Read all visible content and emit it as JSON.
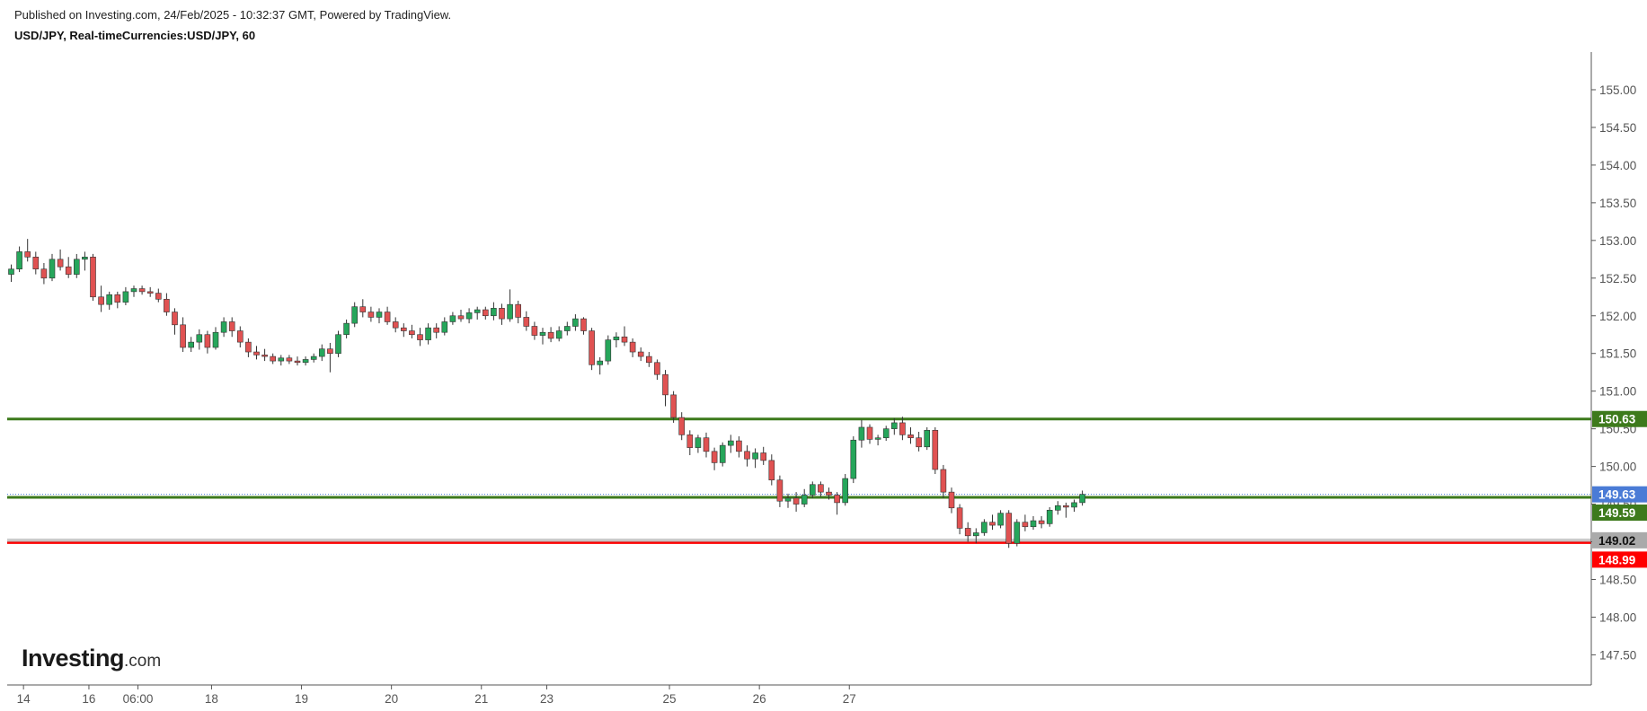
{
  "header": {
    "published": "Published on Investing.com, 24/Feb/2025 - 10:32:37 GMT, Powered by TradingView.",
    "symbol": "USD/JPY, Real-timeCurrencies:USD/JPY, 60"
  },
  "logo": {
    "main": "Investing",
    "suffix": ".com"
  },
  "colors": {
    "up": "#26a65b",
    "down": "#e05252",
    "resistance": "#3d7a1c",
    "support_red": "#ff0000",
    "current": "#4a7bd6",
    "gray": "#aaaaaa"
  },
  "chart_data": {
    "type": "candlestick",
    "title": "USD/JPY, Real-timeCurrencies:USD/JPY, 60",
    "ylim": [
      147.1,
      155.5
    ],
    "y_ticks": [
      "155.00",
      "154.50",
      "154.00",
      "153.50",
      "153.00",
      "152.50",
      "152.00",
      "151.50",
      "151.00",
      "150.50",
      "150.00",
      "149.50",
      "149.00",
      "148.50",
      "148.00",
      "147.50"
    ],
    "x_ticks": [
      {
        "label": "14",
        "t": 1.5
      },
      {
        "label": "16",
        "t": 9.5
      },
      {
        "label": "06:00",
        "t": 15.5
      },
      {
        "label": "18",
        "t": 24.5
      },
      {
        "label": "19",
        "t": 35.5
      },
      {
        "label": "20",
        "t": 46.5
      },
      {
        "label": "21",
        "t": 57.5
      },
      {
        "label": "23",
        "t": 65.5
      },
      {
        "label": "25",
        "t": 80.5
      },
      {
        "label": "26",
        "t": 91.5
      },
      {
        "label": "27",
        "t": 102.5
      }
    ],
    "horizontal_lines": [
      {
        "value": 150.63,
        "label": "150.63",
        "color": "#3d7a1c"
      },
      {
        "value": 149.59,
        "label": "149.59",
        "color": "#3d7a1c"
      },
      {
        "value": 148.99,
        "label": "148.99",
        "color": "#ff0000"
      },
      {
        "value": 149.02,
        "label": "149.02",
        "color": "#aaaaaa"
      }
    ],
    "current_price": {
      "value": 149.63,
      "label": "149.63",
      "color": "#4a7bd6"
    },
    "candles": [
      [
        152.55,
        152.68,
        152.45,
        152.62
      ],
      [
        152.62,
        152.92,
        152.58,
        152.85
      ],
      [
        152.85,
        153.02,
        152.72,
        152.78
      ],
      [
        152.78,
        152.85,
        152.55,
        152.62
      ],
      [
        152.62,
        152.7,
        152.42,
        152.5
      ],
      [
        152.5,
        152.82,
        152.46,
        152.75
      ],
      [
        152.75,
        152.88,
        152.6,
        152.65
      ],
      [
        152.65,
        152.78,
        152.5,
        152.55
      ],
      [
        152.55,
        152.82,
        152.5,
        152.75
      ],
      [
        152.75,
        152.85,
        152.6,
        152.78
      ],
      [
        152.78,
        152.82,
        152.2,
        152.25
      ],
      [
        152.25,
        152.4,
        152.05,
        152.15
      ],
      [
        152.15,
        152.32,
        152.08,
        152.28
      ],
      [
        152.28,
        152.32,
        152.1,
        152.18
      ],
      [
        152.18,
        152.38,
        152.14,
        152.32
      ],
      [
        152.32,
        152.4,
        152.25,
        152.36
      ],
      [
        152.36,
        152.4,
        152.28,
        152.32
      ],
      [
        152.32,
        152.38,
        152.25,
        152.3
      ],
      [
        152.3,
        152.36,
        152.18,
        152.22
      ],
      [
        152.22,
        152.3,
        152.0,
        152.05
      ],
      [
        152.05,
        152.1,
        151.75,
        151.88
      ],
      [
        151.88,
        151.98,
        151.52,
        151.58
      ],
      [
        151.58,
        151.72,
        151.52,
        151.65
      ],
      [
        151.65,
        151.82,
        151.55,
        151.75
      ],
      [
        151.75,
        151.8,
        151.5,
        151.58
      ],
      [
        151.58,
        151.85,
        151.55,
        151.78
      ],
      [
        151.78,
        151.98,
        151.72,
        151.92
      ],
      [
        151.92,
        151.98,
        151.72,
        151.8
      ],
      [
        151.8,
        151.86,
        151.58,
        151.65
      ],
      [
        151.65,
        151.7,
        151.45,
        151.52
      ],
      [
        151.52,
        151.6,
        151.42,
        151.48
      ],
      [
        151.48,
        151.56,
        151.4,
        151.46
      ],
      [
        151.46,
        151.5,
        151.36,
        151.4
      ],
      [
        151.4,
        151.48,
        151.34,
        151.44
      ],
      [
        151.44,
        151.48,
        151.36,
        151.4
      ],
      [
        151.4,
        151.46,
        151.34,
        151.38
      ],
      [
        151.38,
        151.46,
        151.34,
        151.42
      ],
      [
        151.42,
        151.5,
        151.38,
        151.46
      ],
      [
        151.46,
        151.62,
        151.4,
        151.56
      ],
      [
        151.56,
        151.64,
        151.25,
        151.5
      ],
      [
        151.5,
        151.8,
        151.45,
        151.75
      ],
      [
        151.75,
        151.95,
        151.7,
        151.9
      ],
      [
        151.9,
        152.18,
        151.85,
        152.12
      ],
      [
        152.12,
        152.22,
        151.98,
        152.05
      ],
      [
        152.05,
        152.12,
        151.92,
        151.98
      ],
      [
        151.98,
        152.1,
        151.9,
        152.05
      ],
      [
        152.05,
        152.12,
        151.88,
        151.92
      ],
      [
        151.92,
        151.98,
        151.78,
        151.84
      ],
      [
        151.84,
        151.9,
        151.72,
        151.8
      ],
      [
        151.8,
        151.88,
        151.7,
        151.75
      ],
      [
        151.75,
        151.84,
        151.6,
        151.68
      ],
      [
        151.68,
        151.9,
        151.62,
        151.84
      ],
      [
        151.84,
        151.9,
        151.7,
        151.78
      ],
      [
        151.78,
        151.98,
        151.74,
        151.92
      ],
      [
        151.92,
        152.05,
        151.88,
        152.0
      ],
      [
        152.0,
        152.08,
        151.92,
        151.96
      ],
      [
        151.96,
        152.1,
        151.9,
        152.04
      ],
      [
        152.04,
        152.12,
        151.95,
        152.08
      ],
      [
        152.08,
        152.12,
        151.95,
        152.0
      ],
      [
        152.0,
        152.18,
        151.94,
        152.1
      ],
      [
        152.1,
        152.16,
        151.88,
        151.96
      ],
      [
        151.96,
        152.35,
        151.92,
        152.15
      ],
      [
        152.15,
        152.2,
        151.9,
        151.98
      ],
      [
        151.98,
        152.06,
        151.8,
        151.86
      ],
      [
        151.86,
        151.92,
        151.68,
        151.74
      ],
      [
        151.74,
        151.84,
        151.62,
        151.78
      ],
      [
        151.78,
        151.85,
        151.65,
        151.7
      ],
      [
        151.7,
        151.86,
        151.66,
        151.8
      ],
      [
        151.8,
        151.92,
        151.74,
        151.86
      ],
      [
        151.86,
        152.02,
        151.8,
        151.96
      ],
      [
        151.96,
        151.98,
        151.75,
        151.8
      ],
      [
        151.8,
        151.84,
        151.28,
        151.35
      ],
      [
        151.35,
        151.45,
        151.22,
        151.4
      ],
      [
        151.4,
        151.74,
        151.35,
        151.68
      ],
      [
        151.68,
        151.78,
        151.58,
        151.72
      ],
      [
        151.72,
        151.86,
        151.6,
        151.65
      ],
      [
        151.65,
        151.7,
        151.45,
        151.52
      ],
      [
        151.52,
        151.58,
        151.4,
        151.46
      ],
      [
        151.46,
        151.52,
        151.32,
        151.38
      ],
      [
        151.38,
        151.42,
        151.15,
        151.22
      ],
      [
        151.22,
        151.28,
        150.8,
        150.95
      ],
      [
        150.95,
        151.0,
        150.58,
        150.65
      ],
      [
        150.65,
        150.72,
        150.35,
        150.42
      ],
      [
        150.42,
        150.48,
        150.15,
        150.25
      ],
      [
        150.25,
        150.42,
        150.18,
        150.38
      ],
      [
        150.38,
        150.45,
        150.12,
        150.2
      ],
      [
        150.2,
        150.25,
        149.95,
        150.05
      ],
      [
        150.05,
        150.32,
        150.0,
        150.28
      ],
      [
        150.28,
        150.42,
        150.18,
        150.34
      ],
      [
        150.34,
        150.4,
        150.12,
        150.2
      ],
      [
        150.2,
        150.28,
        150.0,
        150.1
      ],
      [
        150.1,
        150.24,
        149.98,
        150.18
      ],
      [
        150.18,
        150.26,
        150.02,
        150.08
      ],
      [
        150.08,
        150.16,
        149.75,
        149.82
      ],
      [
        149.82,
        149.88,
        149.46,
        149.54
      ],
      [
        149.54,
        149.64,
        149.45,
        149.58
      ],
      [
        149.58,
        149.66,
        149.4,
        149.5
      ],
      [
        149.5,
        149.7,
        149.46,
        149.62
      ],
      [
        149.62,
        149.8,
        149.58,
        149.76
      ],
      [
        149.76,
        149.8,
        149.6,
        149.66
      ],
      [
        149.66,
        149.72,
        149.56,
        149.62
      ],
      [
        149.62,
        149.66,
        149.36,
        149.52
      ],
      [
        149.52,
        149.9,
        149.48,
        149.84
      ],
      [
        149.84,
        150.4,
        149.78,
        150.35
      ],
      [
        150.35,
        150.62,
        150.25,
        150.52
      ],
      [
        150.52,
        150.56,
        150.3,
        150.36
      ],
      [
        150.36,
        150.42,
        150.28,
        150.38
      ],
      [
        150.38,
        150.54,
        150.34,
        150.5
      ],
      [
        150.5,
        150.64,
        150.42,
        150.58
      ],
      [
        150.58,
        150.66,
        150.35,
        150.42
      ],
      [
        150.42,
        150.52,
        150.3,
        150.38
      ],
      [
        150.38,
        150.46,
        150.2,
        150.26
      ],
      [
        150.26,
        150.52,
        150.22,
        150.48
      ],
      [
        150.48,
        150.52,
        149.9,
        149.96
      ],
      [
        149.96,
        150.02,
        149.58,
        149.66
      ],
      [
        149.66,
        149.72,
        149.38,
        149.45
      ],
      [
        149.45,
        149.5,
        149.1,
        149.18
      ],
      [
        149.18,
        149.26,
        149.0,
        149.08
      ],
      [
        149.08,
        149.18,
        148.98,
        149.12
      ],
      [
        149.12,
        149.3,
        149.08,
        149.26
      ],
      [
        149.26,
        149.36,
        149.16,
        149.22
      ],
      [
        149.22,
        149.42,
        149.18,
        149.38
      ],
      [
        149.38,
        149.42,
        148.92,
        148.98
      ],
      [
        148.98,
        149.3,
        148.94,
        149.26
      ],
      [
        149.26,
        149.36,
        149.14,
        149.2
      ],
      [
        149.2,
        149.34,
        149.16,
        149.28
      ],
      [
        149.28,
        149.34,
        149.18,
        149.24
      ],
      [
        149.24,
        149.46,
        149.2,
        149.42
      ],
      [
        149.42,
        149.54,
        149.36,
        149.48
      ],
      [
        149.48,
        149.52,
        149.32,
        149.46
      ],
      [
        149.46,
        149.56,
        149.4,
        149.52
      ],
      [
        149.52,
        149.68,
        149.48,
        149.63
      ]
    ]
  }
}
